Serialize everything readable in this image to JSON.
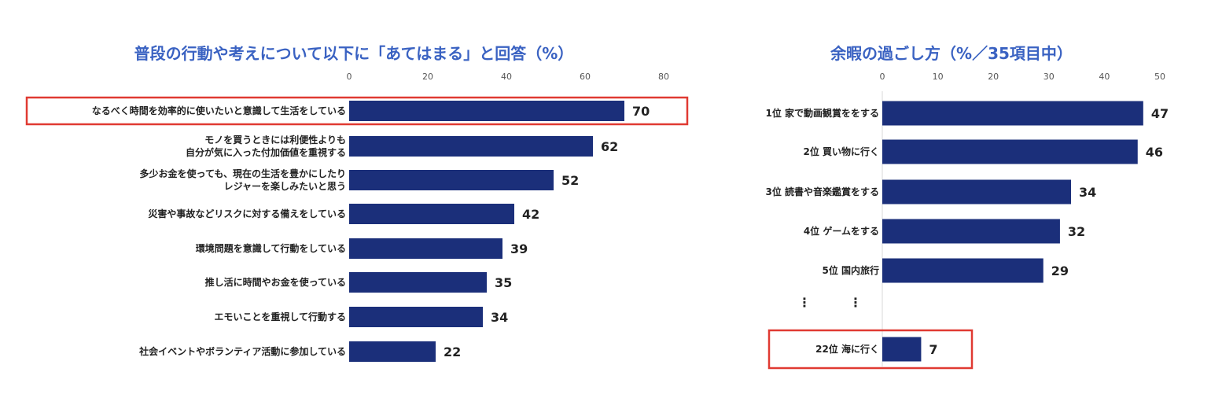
{
  "chart_data": [
    {
      "type": "bar",
      "orientation": "horizontal",
      "title": "普段の行動や考えについて以下に「あてはまる」と回答（%）",
      "categories": [
        [
          "なるべく時間を効率的に使いたいと意識して生活をしている"
        ],
        [
          "モノを買うときには利便性よりも",
          "自分が気に入った付加価値を重視する"
        ],
        [
          "多少お金を使っても、現在の生活を豊かにしたり",
          "レジャーを楽しみたいと思う"
        ],
        [
          "災害や事故などリスクに対する備えをしている"
        ],
        [
          "環境問題を意識して行動をしている"
        ],
        [
          "推し活に時間やお金を使っている"
        ],
        [
          "エモいことを重視して行動する"
        ],
        [
          "社会イベントやボランティア活動に参加している"
        ]
      ],
      "values": [
        70,
        62,
        52,
        42,
        39,
        35,
        34,
        22
      ],
      "xlim": [
        0,
        80
      ],
      "ticks": [
        0,
        20,
        40,
        60,
        80
      ],
      "highlight": [
        0
      ],
      "bar_color": "#1b2f7a",
      "highlight_color": "#e03a32"
    },
    {
      "type": "bar",
      "orientation": "horizontal",
      "title": "余暇の過ごし方（%／35項目中）",
      "categories": [
        [
          "1位 家で動画観賞ををする"
        ],
        [
          "2位 買い物に行く"
        ],
        [
          "3位 読書や音楽鑑賞をする"
        ],
        [
          "4位 ゲームをする"
        ],
        [
          "5位 国内旅行"
        ],
        [
          "22位 海に行く"
        ]
      ],
      "values": [
        47,
        46,
        34,
        32,
        29,
        7
      ],
      "xlim": [
        0,
        50
      ],
      "ticks": [
        0,
        10,
        20,
        30,
        40,
        50
      ],
      "highlight": [
        5
      ],
      "ellipsis": "⋮",
      "bar_color": "#1b2f7a",
      "highlight_color": "#e03a32"
    }
  ]
}
